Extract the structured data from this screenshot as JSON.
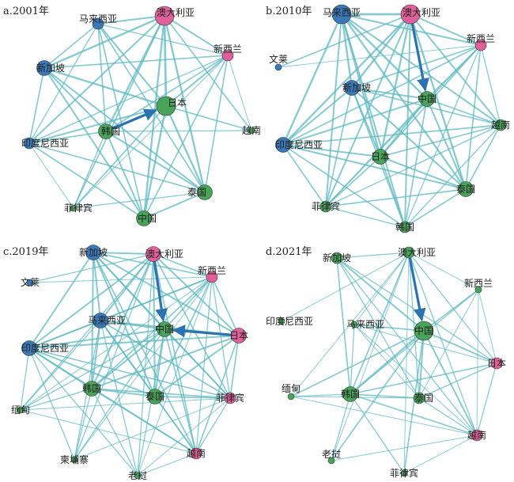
{
  "colors": {
    "blue": "#3a78b8",
    "pink": "#e0609a",
    "green": "#4aa35a",
    "edge": "#5fb8c0",
    "arrow": "#2a72b0"
  },
  "panels": [
    {
      "id": "a",
      "label": "a.2001年",
      "nodes": [
        {
          "id": "kh",
          "label": "马来西亚",
          "group": "blue",
          "size": 1
        },
        {
          "id": "au",
          "label": "澳大利亚",
          "group": "pink",
          "size": 3
        },
        {
          "id": "nz",
          "label": "新西兰",
          "group": "pink",
          "size": 1
        },
        {
          "id": "sg",
          "label": "新加坡",
          "group": "blue",
          "size": 2
        },
        {
          "id": "jp",
          "label": "日本",
          "group": "green",
          "size": 3
        },
        {
          "id": "kr",
          "label": "韩国",
          "group": "green",
          "size": 2
        },
        {
          "id": "vn",
          "label": "越南",
          "group": "green",
          "size": 0
        },
        {
          "id": "id",
          "label": "印度尼西亚",
          "group": "blue",
          "size": 1
        },
        {
          "id": "th",
          "label": "泰国",
          "group": "green",
          "size": 2
        },
        {
          "id": "ph",
          "label": "菲律宾",
          "group": "green",
          "size": 0
        },
        {
          "id": "cn",
          "label": "中国",
          "group": "green",
          "size": 2
        }
      ],
      "arrows": [
        [
          "kr",
          "jp"
        ]
      ]
    },
    {
      "id": "b",
      "label": "b.2010年",
      "nodes": [
        {
          "id": "my",
          "label": "马来西亚",
          "group": "blue",
          "size": 3
        },
        {
          "id": "au",
          "label": "澳大利亚",
          "group": "pink",
          "size": 3
        },
        {
          "id": "nz",
          "label": "新西兰",
          "group": "pink",
          "size": 1
        },
        {
          "id": "bn",
          "label": "文莱",
          "group": "blue",
          "size": 0
        },
        {
          "id": "sg",
          "label": "新加坡",
          "group": "blue",
          "size": 2
        },
        {
          "id": "cn",
          "label": "中国",
          "group": "green",
          "size": 2
        },
        {
          "id": "vn",
          "label": "越南",
          "group": "green",
          "size": 1
        },
        {
          "id": "id",
          "label": "印度尼西亚",
          "group": "blue",
          "size": 2
        },
        {
          "id": "jp",
          "label": "日本",
          "group": "green",
          "size": 2
        },
        {
          "id": "th",
          "label": "泰国",
          "group": "green",
          "size": 2
        },
        {
          "id": "ph",
          "label": "菲律宾",
          "group": "green",
          "size": 1
        },
        {
          "id": "kr",
          "label": "韩国",
          "group": "green",
          "size": 1
        }
      ],
      "arrows": [
        [
          "au",
          "cn"
        ]
      ]
    },
    {
      "id": "c",
      "label": "c.2019年",
      "nodes": [
        {
          "id": "sg",
          "label": "新加坡",
          "group": "blue",
          "size": 2
        },
        {
          "id": "au",
          "label": "澳大利亚",
          "group": "pink",
          "size": 2
        },
        {
          "id": "nz",
          "label": "新西兰",
          "group": "pink",
          "size": 1
        },
        {
          "id": "bn",
          "label": "文莱",
          "group": "blue",
          "size": 0
        },
        {
          "id": "my",
          "label": "马来西亚",
          "group": "blue",
          "size": 2
        },
        {
          "id": "cn",
          "label": "中国",
          "group": "green",
          "size": 2
        },
        {
          "id": "jp",
          "label": "日本",
          "group": "pink",
          "size": 2
        },
        {
          "id": "id",
          "label": "印度尼西亚",
          "group": "blue",
          "size": 2
        },
        {
          "id": "kr",
          "label": "韩国",
          "group": "green",
          "size": 2
        },
        {
          "id": "th",
          "label": "泰国",
          "group": "green",
          "size": 2
        },
        {
          "id": "ph",
          "label": "菲律宾",
          "group": "pink",
          "size": 1
        },
        {
          "id": "mm",
          "label": "缅甸",
          "group": "green",
          "size": 0
        },
        {
          "id": "kh",
          "label": "柬埔寨",
          "group": "green",
          "size": 0
        },
        {
          "id": "vn",
          "label": "越南",
          "group": "pink",
          "size": 1
        },
        {
          "id": "la",
          "label": "老挝",
          "group": "green",
          "size": 0
        }
      ],
      "arrows": [
        [
          "au",
          "cn"
        ],
        [
          "jp",
          "cn"
        ]
      ]
    },
    {
      "id": "d",
      "label": "d.2021年",
      "nodes": [
        {
          "id": "sg",
          "label": "新加坡",
          "group": "green",
          "size": 1
        },
        {
          "id": "au",
          "label": "澳大利亚",
          "group": "green",
          "size": 1
        },
        {
          "id": "nz",
          "label": "新西兰",
          "group": "green",
          "size": 0
        },
        {
          "id": "id",
          "label": "印度尼西亚",
          "group": "green",
          "size": 0
        },
        {
          "id": "my",
          "label": "马来西亚",
          "group": "green",
          "size": 0
        },
        {
          "id": "cn",
          "label": "中国",
          "group": "green",
          "size": 3
        },
        {
          "id": "jp",
          "label": "日本",
          "group": "pink",
          "size": 1
        },
        {
          "id": "mm",
          "label": "缅甸",
          "group": "green",
          "size": 0
        },
        {
          "id": "kr",
          "label": "韩国",
          "group": "green",
          "size": 2
        },
        {
          "id": "th",
          "label": "泰国",
          "group": "green",
          "size": 1
        },
        {
          "id": "vn",
          "label": "越南",
          "group": "pink",
          "size": 1
        },
        {
          "id": "la",
          "label": "老挝",
          "group": "green",
          "size": 0
        },
        {
          "id": "ph",
          "label": "菲律宾",
          "group": "green",
          "size": 0
        }
      ],
      "arrows": [
        [
          "au",
          "cn"
        ]
      ]
    }
  ]
}
